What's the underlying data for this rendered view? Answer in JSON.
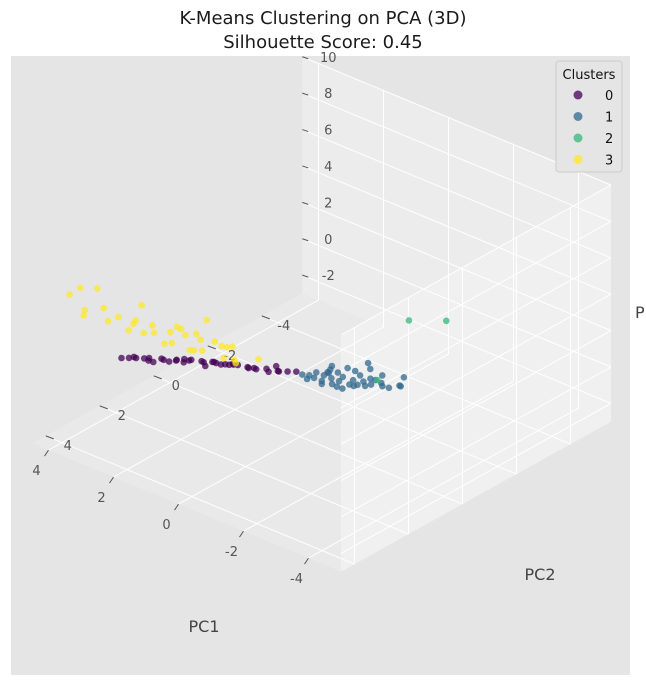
{
  "chart_data": {
    "type": "scatter",
    "projection": "3d",
    "title_line1": "K-Means Clustering on PCA (3D)",
    "title_line2": "Silhouette Score: 0.45",
    "xlabel": "PC1",
    "ylabel": "PC2",
    "zlabel": "P",
    "x_ticks": [
      -4,
      -2,
      0,
      2,
      4
    ],
    "y_ticks": [
      -4,
      -2,
      0,
      2,
      4
    ],
    "z_ticks": [
      -2,
      0,
      2,
      4,
      6,
      8,
      10
    ],
    "xlim": [
      -5,
      4.5
    ],
    "ylim": [
      -5.5,
      4.5
    ],
    "zlim": [
      -3,
      10
    ],
    "grid": true,
    "legend": {
      "title": "Clusters",
      "placement": "top-right",
      "labels": [
        "0",
        "1",
        "2",
        "3"
      ]
    },
    "colors": {
      "0": "#440154",
      "1": "#31688e",
      "2": "#35b779",
      "3": "#fde725",
      "background": "#e5e5e5",
      "grid": "#ffffff"
    },
    "series": [
      {
        "name": "0",
        "points": [
          [
            -0.3,
            0.5,
            1.2
          ],
          [
            -0.2,
            0.7,
            1.3
          ],
          [
            -0.1,
            0.9,
            1.4
          ],
          [
            0.1,
            0.7,
            1.1
          ],
          [
            0.2,
            1.0,
            1.4
          ],
          [
            0.3,
            0.8,
            1.0
          ],
          [
            0.5,
            1.1,
            1.3
          ],
          [
            0.6,
            0.9,
            1.0
          ],
          [
            0.7,
            1.1,
            1.2
          ],
          [
            0.9,
            1.4,
            1.5
          ],
          [
            1.0,
            1.1,
            1.1
          ],
          [
            1.1,
            1.3,
            1.2
          ],
          [
            1.3,
            1.2,
            1.0
          ],
          [
            1.4,
            1.5,
            1.3
          ],
          [
            1.5,
            1.3,
            1.0
          ],
          [
            1.7,
            1.6,
            1.2
          ],
          [
            1.8,
            1.4,
            0.9
          ],
          [
            2.0,
            1.7,
            1.1
          ],
          [
            2.1,
            1.5,
            0.9
          ],
          [
            2.3,
            1.8,
            1.0
          ],
          [
            2.4,
            1.7,
            0.8
          ],
          [
            2.6,
            2.0,
            1.0
          ],
          [
            2.7,
            1.8,
            0.7
          ],
          [
            2.9,
            2.1,
            0.9
          ],
          [
            3.0,
            2.0,
            0.6
          ],
          [
            3.2,
            2.3,
            0.9
          ],
          [
            3.3,
            2.1,
            0.6
          ],
          [
            3.5,
            2.4,
            0.7
          ],
          [
            1.2,
            1.8,
            1.7
          ],
          [
            0.8,
            1.5,
            1.6
          ],
          [
            2.2,
            2.2,
            1.3
          ],
          [
            1.6,
            1.0,
            0.6
          ],
          [
            2.5,
            1.3,
            0.3
          ],
          [
            0.4,
            0.4,
            0.9
          ],
          [
            1.9,
            2.0,
            1.5
          ],
          [
            2.8,
            2.4,
            1.2
          ],
          [
            3.1,
            1.7,
            0.2
          ],
          [
            1.0,
            0.7,
            0.6
          ],
          [
            2.0,
            1.1,
            0.3
          ],
          [
            3.6,
            2.0,
            0.3
          ]
        ]
      },
      {
        "name": "1",
        "points": [
          [
            -3.2,
            0.8,
            2.8
          ],
          [
            -3.0,
            1.2,
            3.0
          ],
          [
            -2.8,
            1.8,
            3.2
          ],
          [
            -2.6,
            1.0,
            2.6
          ],
          [
            -2.9,
            0.2,
            2.0
          ],
          [
            -2.6,
            0.5,
            2.2
          ],
          [
            -2.4,
            0.9,
            2.3
          ],
          [
            -2.3,
            1.4,
            2.6
          ],
          [
            -2.5,
            0.0,
            1.8
          ],
          [
            -2.2,
            0.3,
            1.9
          ],
          [
            -2.1,
            0.7,
            2.0
          ],
          [
            -1.9,
            1.1,
            2.2
          ],
          [
            -2.0,
            -0.2,
            1.5
          ],
          [
            -1.8,
            0.2,
            1.6
          ],
          [
            -1.7,
            0.6,
            1.8
          ],
          [
            -1.5,
            1.0,
            2.0
          ],
          [
            -1.6,
            -0.3,
            1.3
          ],
          [
            -1.4,
            0.1,
            1.4
          ],
          [
            -1.3,
            0.4,
            1.5
          ],
          [
            -1.1,
            0.8,
            1.7
          ],
          [
            -1.2,
            -0.6,
            1.0
          ],
          [
            -1.0,
            -0.2,
            1.1
          ],
          [
            -0.9,
            0.2,
            1.2
          ],
          [
            -0.7,
            0.5,
            1.3
          ],
          [
            -0.8,
            -0.8,
            0.7
          ],
          [
            -0.6,
            -0.4,
            0.8
          ],
          [
            -0.5,
            0.0,
            0.9
          ],
          [
            -1.3,
            1.3,
            2.2
          ],
          [
            -0.9,
            1.0,
            1.9
          ],
          [
            -1.7,
            -1.0,
            0.8
          ],
          [
            -2.2,
            -1.2,
            0.9
          ],
          [
            -1.0,
            -1.4,
            0.3
          ],
          [
            -0.4,
            -0.7,
            0.6
          ],
          [
            -2.0,
            1.6,
            2.7
          ],
          [
            -1.4,
            -2.0,
            -0.8
          ],
          [
            -0.6,
            -1.8,
            0.0
          ],
          [
            -2.6,
            -0.6,
            1.2
          ],
          [
            -1.1,
            0.3,
            1.6
          ],
          [
            -1.9,
            -0.5,
            1.1
          ],
          [
            -0.8,
            -0.1,
            1.0
          ]
        ]
      },
      {
        "name": "2",
        "points": [
          [
            -4.5,
            0.0,
            6.7
          ],
          [
            -3.6,
            0.3,
            6.3
          ],
          [
            -2.8,
            0.5,
            2.6
          ]
        ]
      },
      {
        "name": "3",
        "points": [
          [
            0.0,
            2.5,
            4.0
          ],
          [
            0.3,
            2.8,
            4.3
          ],
          [
            0.7,
            3.0,
            4.6
          ],
          [
            0.5,
            2.3,
            3.5
          ],
          [
            0.9,
            2.6,
            3.8
          ],
          [
            1.2,
            2.8,
            4.0
          ],
          [
            1.0,
            3.2,
            4.8
          ],
          [
            1.5,
            3.0,
            4.1
          ],
          [
            1.8,
            3.3,
            4.5
          ],
          [
            2.0,
            3.0,
            3.7
          ],
          [
            2.3,
            3.4,
            4.3
          ],
          [
            2.6,
            3.6,
            4.6
          ],
          [
            -0.5,
            3.3,
            5.0
          ],
          [
            -0.2,
            3.7,
            6.6
          ],
          [
            0.2,
            2.2,
            2.9
          ],
          [
            0.6,
            2.1,
            2.6
          ],
          [
            1.1,
            2.3,
            2.8
          ],
          [
            1.4,
            2.4,
            2.7
          ],
          [
            1.7,
            2.7,
            3.1
          ],
          [
            2.1,
            2.5,
            2.6
          ],
          [
            2.4,
            2.9,
            3.3
          ],
          [
            2.8,
            3.9,
            5.2
          ],
          [
            3.0,
            3.5,
            4.0
          ],
          [
            3.3,
            4.0,
            4.8
          ],
          [
            3.5,
            3.8,
            4.2
          ],
          [
            1.3,
            4.3,
            6.8
          ],
          [
            2.5,
            4.5,
            7.0
          ],
          [
            3.1,
            4.4,
            6.5
          ],
          [
            0.8,
            3.6,
            5.4
          ],
          [
            1.9,
            3.8,
            5.1
          ],
          [
            0.4,
            1.9,
            2.3
          ],
          [
            1.6,
            2.0,
            2.2
          ],
          [
            2.7,
            3.1,
            3.4
          ],
          [
            -0.8,
            2.5,
            3.9
          ],
          [
            3.6,
            4.2,
            5.6
          ]
        ]
      }
    ]
  }
}
